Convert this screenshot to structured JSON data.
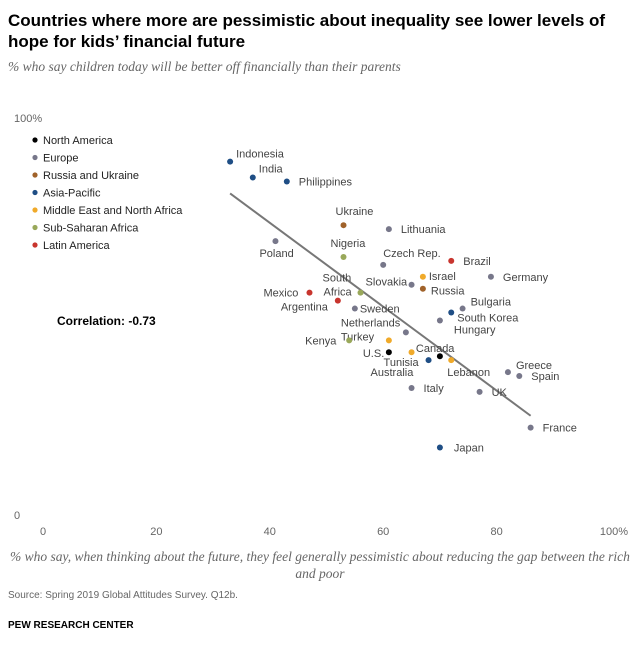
{
  "header": {
    "title": "Countries where more are pessimistic about inequality see lower levels of hope for kids’ financial future",
    "subtitle": "% who say children today will be better off financially than their parents"
  },
  "footer": {
    "source": "Source: Spring 2019 Global Attitudes Survey. Q12b.",
    "brand": "PEW RESEARCH CENTER"
  },
  "chart_data": {
    "type": "scatter",
    "xlabel": "% who say, when thinking about the future, they feel generally pessimistic about reducing the gap between the rich and poor",
    "ylabel": "",
    "xlim": [
      0,
      100
    ],
    "ylim": [
      0,
      100
    ],
    "x_ticks": [
      "0",
      "20",
      "40",
      "60",
      "80",
      "100%"
    ],
    "y_ticks": [
      "0",
      "100%"
    ],
    "grid": false,
    "legend_position": "top-left",
    "annotation": "Correlation: -0.73",
    "trendline": {
      "x": [
        33,
        86
      ],
      "y": [
        81,
        25
      ]
    },
    "regions": [
      {
        "name": "North America",
        "color": "#000000"
      },
      {
        "name": "Europe",
        "color": "#77778a"
      },
      {
        "name": "Russia and Ukraine",
        "color": "#a0622a"
      },
      {
        "name": "Asia-Pacific",
        "color": "#1f4e85"
      },
      {
        "name": "Middle East and North Africa",
        "color": "#f0aa2a"
      },
      {
        "name": "Sub-Saharan Africa",
        "color": "#99a85a"
      },
      {
        "name": "Latin America",
        "color": "#c8352e"
      }
    ],
    "points": [
      {
        "label": "Indonesia",
        "region": 3,
        "x": 33,
        "y": 89
      },
      {
        "label": "India",
        "region": 3,
        "x": 37,
        "y": 85
      },
      {
        "label": "Philippines",
        "region": 3,
        "x": 43,
        "y": 84
      },
      {
        "label": "Ukraine",
        "region": 2,
        "x": 53,
        "y": 73
      },
      {
        "label": "Lithuania",
        "region": 1,
        "x": 61,
        "y": 72
      },
      {
        "label": "Poland",
        "region": 1,
        "x": 41,
        "y": 69
      },
      {
        "label": "Nigeria",
        "region": 5,
        "x": 53,
        "y": 65
      },
      {
        "label": "Czech Rep.",
        "region": 1,
        "x": 60,
        "y": 63
      },
      {
        "label": "Brazil",
        "region": 6,
        "x": 72,
        "y": 64
      },
      {
        "label": "Israel",
        "region": 4,
        "x": 67,
        "y": 60
      },
      {
        "label": "Germany",
        "region": 1,
        "x": 79,
        "y": 60
      },
      {
        "label": "Slovakia",
        "region": 1,
        "x": 65,
        "y": 58
      },
      {
        "label": "Russia",
        "region": 2,
        "x": 67,
        "y": 57
      },
      {
        "label": "South Africa",
        "region": 5,
        "x": 56,
        "y": 56
      },
      {
        "label": "Mexico",
        "region": 6,
        "x": 47,
        "y": 56
      },
      {
        "label": "Argentina",
        "region": 6,
        "x": 52,
        "y": 54
      },
      {
        "label": "Sweden",
        "region": 1,
        "x": 55,
        "y": 52
      },
      {
        "label": "Bulgaria",
        "region": 1,
        "x": 74,
        "y": 52
      },
      {
        "label": "South Korea",
        "region": 3,
        "x": 72,
        "y": 51
      },
      {
        "label": "Hungary",
        "region": 1,
        "x": 70,
        "y": 49
      },
      {
        "label": "Netherlands",
        "region": 1,
        "x": 64,
        "y": 46
      },
      {
        "label": "Turkey",
        "region": 4,
        "x": 61,
        "y": 44
      },
      {
        "label": "Kenya",
        "region": 5,
        "x": 54,
        "y": 44
      },
      {
        "label": "U.S.",
        "region": 0,
        "x": 61,
        "y": 41
      },
      {
        "label": "Tunisia",
        "region": 4,
        "x": 65,
        "y": 41
      },
      {
        "label": "Canada",
        "region": 0,
        "x": 70,
        "y": 40
      },
      {
        "label": "Australia",
        "region": 3,
        "x": 68,
        "y": 39
      },
      {
        "label": "Lebanon",
        "region": 4,
        "x": 72,
        "y": 39
      },
      {
        "label": "Greece",
        "region": 1,
        "x": 82,
        "y": 36
      },
      {
        "label": "Spain",
        "region": 1,
        "x": 84,
        "y": 35
      },
      {
        "label": "Italy",
        "region": 1,
        "x": 65,
        "y": 32
      },
      {
        "label": "UK",
        "region": 1,
        "x": 77,
        "y": 31
      },
      {
        "label": "France",
        "region": 1,
        "x": 86,
        "y": 22
      },
      {
        "label": "Japan",
        "region": 3,
        "x": 70,
        "y": 17
      }
    ]
  }
}
